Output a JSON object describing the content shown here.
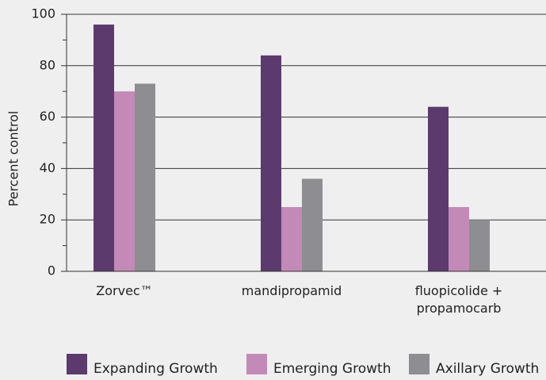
{
  "chart_data": {
    "type": "bar",
    "y_label": "Percent control",
    "categories": [
      "Zorvec™",
      "mandipropamid",
      "fluopicolide + propamocarb"
    ],
    "series": [
      {
        "name": "Expanding Growth",
        "color": "#5c3a6e",
        "values": [
          96,
          84,
          64
        ]
      },
      {
        "name": "Emerging Growth",
        "color": "#c38ab7",
        "values": [
          70,
          25,
          25
        ]
      },
      {
        "name": "Axillary Growth",
        "color": "#8d8d92",
        "values": [
          73,
          36,
          20
        ]
      }
    ],
    "ylim": [
      0,
      100
    ],
    "yticks": [
      0,
      20,
      40,
      60,
      80,
      100
    ],
    "minor_yticks": [
      10,
      30,
      50,
      70,
      90
    ],
    "grid": true,
    "legend": "bottom"
  }
}
